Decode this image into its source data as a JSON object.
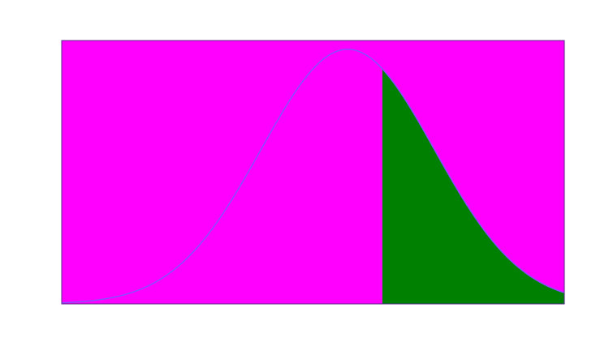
{
  "chart_data": {
    "type": "area",
    "title": "",
    "xlabel": "",
    "ylabel": "",
    "distribution": "normal",
    "mean": 0,
    "sd": 1,
    "xlim": [
      -3.3,
      2.5
    ],
    "ylim": [
      0,
      0.4
    ],
    "shade_from": 0.4,
    "shade_to": 2.5,
    "grid": false,
    "axes_visible": false,
    "colors": {
      "page_background": "#ffffff",
      "plot_background": "#ff00ff",
      "plot_border": "#5a2a8a",
      "curve": "#8a4dff",
      "shaded_area": "#008000"
    }
  }
}
